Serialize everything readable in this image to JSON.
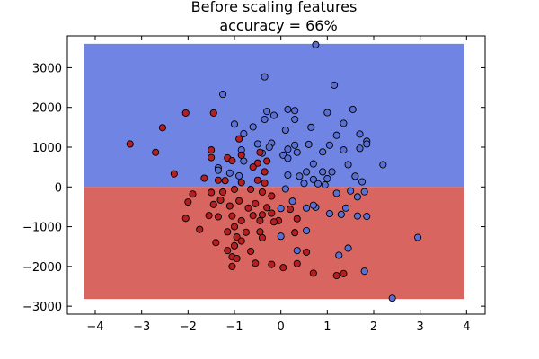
{
  "chart_data": {
    "type": "scatter",
    "title": "Before scaling features",
    "subtitle": "accuracy = 66%",
    "xlabel": "",
    "ylabel": "",
    "xlim": [
      -4.6,
      4.4
    ],
    "ylim": [
      -3200,
      3800
    ],
    "xticks": [
      -4,
      -3,
      -2,
      -1,
      0,
      1,
      2,
      3,
      4
    ],
    "yticks": [
      -3000,
      -2000,
      -1000,
      0,
      1000,
      2000,
      3000
    ],
    "grid": false,
    "decision_regions": [
      {
        "class": 0,
        "color": "#6f84e3",
        "x_range": [
          -4.25,
          3.95
        ],
        "y_range": [
          0,
          3600
        ]
      },
      {
        "class": 1,
        "color": "#d96560",
        "x_range": [
          -4.25,
          3.95
        ],
        "y_range": [
          -2820,
          0
        ]
      }
    ],
    "series": [
      {
        "class": 0,
        "color": "#5a6fd1",
        "points": [
          [
            0.75,
            3580
          ],
          [
            -0.35,
            2770
          ],
          [
            1.15,
            2560
          ],
          [
            -1.25,
            2330
          ],
          [
            1.55,
            1950
          ],
          [
            0.15,
            1950
          ],
          [
            0.3,
            1920
          ],
          [
            -0.3,
            1900
          ],
          [
            1.0,
            1870
          ],
          [
            -0.15,
            1800
          ],
          [
            -0.35,
            1700
          ],
          [
            0.3,
            1700
          ],
          [
            1.35,
            1600
          ],
          [
            -1.0,
            1580
          ],
          [
            -0.6,
            1510
          ],
          [
            0.65,
            1500
          ],
          [
            0.1,
            1430
          ],
          [
            1.7,
            1330
          ],
          [
            -0.8,
            1340
          ],
          [
            1.2,
            1300
          ],
          [
            1.85,
            1150
          ],
          [
            1.85,
            1080
          ],
          [
            -0.2,
            1100
          ],
          [
            0.6,
            1070
          ],
          [
            -0.5,
            1080
          ],
          [
            0.3,
            1050
          ],
          [
            1.05,
            1050
          ],
          [
            -0.25,
            1000
          ],
          [
            0.15,
            950
          ],
          [
            -0.85,
            930
          ],
          [
            1.35,
            930
          ],
          [
            1.7,
            970
          ],
          [
            -0.4,
            850
          ],
          [
            0.35,
            870
          ],
          [
            0.9,
            880
          ],
          [
            0.05,
            800
          ],
          [
            0.15,
            720
          ],
          [
            -1.35,
            480
          ],
          [
            -1.35,
            420
          ],
          [
            0.7,
            580
          ],
          [
            -0.8,
            650
          ],
          [
            2.2,
            560
          ],
          [
            1.45,
            560
          ],
          [
            -1.1,
            350
          ],
          [
            0.15,
            300
          ],
          [
            0.9,
            380
          ],
          [
            0.55,
            380
          ],
          [
            1.1,
            380
          ],
          [
            0.4,
            270
          ],
          [
            1.6,
            270
          ],
          [
            -0.9,
            280
          ],
          [
            1.0,
            210
          ],
          [
            0.7,
            190
          ],
          [
            0.8,
            80
          ],
          [
            0.5,
            90
          ],
          [
            1.75,
            130
          ],
          [
            0.95,
            50
          ],
          [
            1.5,
            -100
          ],
          [
            0.1,
            -50
          ],
          [
            1.2,
            -160
          ],
          [
            1.8,
            -120
          ],
          [
            1.65,
            -250
          ],
          [
            0.25,
            -360
          ],
          [
            0.0,
            -540
          ],
          [
            0.55,
            -530
          ],
          [
            0.75,
            -510
          ],
          [
            0.7,
            -460
          ],
          [
            1.4,
            -530
          ],
          [
            1.05,
            -670
          ],
          [
            1.65,
            -730
          ],
          [
            1.3,
            -690
          ],
          [
            1.85,
            -740
          ],
          [
            0.55,
            -1100
          ],
          [
            0.0,
            -1240
          ],
          [
            0.35,
            -1600
          ],
          [
            2.95,
            -1270
          ],
          [
            1.45,
            -1540
          ],
          [
            1.25,
            -1720
          ],
          [
            1.8,
            -2120
          ],
          [
            2.4,
            -2800
          ]
        ]
      },
      {
        "class": 1,
        "color": "#b41f22",
        "points": [
          [
            -2.05,
            1860
          ],
          [
            -1.45,
            1860
          ],
          [
            -2.55,
            1490
          ],
          [
            -3.25,
            1080
          ],
          [
            -2.7,
            870
          ],
          [
            -0.9,
            1210
          ],
          [
            -1.5,
            930
          ],
          [
            -0.85,
            800
          ],
          [
            -0.45,
            870
          ],
          [
            -1.15,
            730
          ],
          [
            -1.5,
            740
          ],
          [
            -1.05,
            660
          ],
          [
            -0.3,
            650
          ],
          [
            -0.5,
            600
          ],
          [
            -0.6,
            500
          ],
          [
            -2.3,
            330
          ],
          [
            -0.35,
            380
          ],
          [
            -1.65,
            220
          ],
          [
            -1.35,
            170
          ],
          [
            -1.2,
            160
          ],
          [
            -0.5,
            170
          ],
          [
            -0.85,
            110
          ],
          [
            -0.35,
            100
          ],
          [
            -1.0,
            -60
          ],
          [
            -1.25,
            -130
          ],
          [
            -1.9,
            -180
          ],
          [
            -0.65,
            -60
          ],
          [
            -0.4,
            -130
          ],
          [
            -1.5,
            -140
          ],
          [
            -0.2,
            -230
          ],
          [
            -2.0,
            -380
          ],
          [
            -1.3,
            -330
          ],
          [
            -0.9,
            -350
          ],
          [
            -0.55,
            -420
          ],
          [
            -1.45,
            -440
          ],
          [
            -1.1,
            -480
          ],
          [
            -0.7,
            -530
          ],
          [
            -0.3,
            -520
          ],
          [
            0.2,
            -560
          ],
          [
            -1.55,
            -720
          ],
          [
            -1.35,
            -750
          ],
          [
            -1.05,
            -730
          ],
          [
            -0.85,
            -850
          ],
          [
            -0.6,
            -720
          ],
          [
            -0.4,
            -700
          ],
          [
            -0.2,
            -660
          ],
          [
            -2.05,
            -790
          ],
          [
            -1.0,
            -1000
          ],
          [
            -0.45,
            -850
          ],
          [
            -0.05,
            -850
          ],
          [
            0.35,
            -800
          ],
          [
            -0.15,
            -880
          ],
          [
            -1.75,
            -1070
          ],
          [
            -1.15,
            -1130
          ],
          [
            -0.75,
            -1140
          ],
          [
            -0.45,
            -1130
          ],
          [
            -0.95,
            -1260
          ],
          [
            -1.4,
            -1400
          ],
          [
            -0.4,
            -1280
          ],
          [
            0.3,
            -1150
          ],
          [
            -0.85,
            -1360
          ],
          [
            -1.0,
            -1480
          ],
          [
            -1.15,
            -1600
          ],
          [
            -0.65,
            -1620
          ],
          [
            0.55,
            -1640
          ],
          [
            -1.05,
            -1760
          ],
          [
            -0.95,
            -1800
          ],
          [
            -0.2,
            -1950
          ],
          [
            0.35,
            -1930
          ],
          [
            -1.05,
            -2000
          ],
          [
            0.05,
            -2030
          ],
          [
            -0.55,
            -1920
          ],
          [
            0.7,
            -2170
          ],
          [
            1.2,
            -2230
          ],
          [
            1.35,
            -2180
          ]
        ]
      }
    ]
  }
}
